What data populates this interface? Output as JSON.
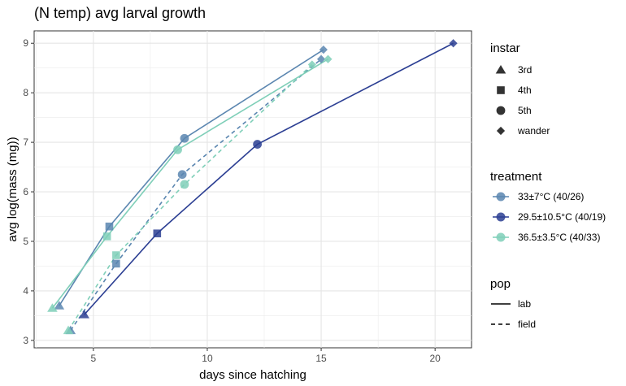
{
  "chart_data": {
    "type": "line",
    "title": "(N temp) avg larval growth",
    "xlabel": "days since hatching",
    "ylabel": "avg log(mass (mg))",
    "xlim": [
      2.4,
      21.6
    ],
    "ylim": [
      2.85,
      9.25
    ],
    "x_ticks": [
      5,
      10,
      15,
      20
    ],
    "y_ticks": [
      3,
      4,
      5,
      6,
      7,
      8,
      9
    ],
    "grid": true,
    "legend_placement": "right",
    "instars": [
      "3rd",
      "4th",
      "5th",
      "wander"
    ],
    "series": [
      {
        "treatment": "33±7°C (40/26)",
        "pop": "lab",
        "color": "#5b86b0",
        "points": [
          {
            "x": 3.5,
            "y": 3.7,
            "instar": "3rd"
          },
          {
            "x": 5.7,
            "y": 5.3,
            "instar": "4th"
          },
          {
            "x": 9.0,
            "y": 7.08,
            "instar": "5th"
          },
          {
            "x": 15.1,
            "y": 8.87,
            "instar": "wander"
          }
        ]
      },
      {
        "treatment": "33±7°C (40/26)",
        "pop": "field",
        "color": "#5b86b0",
        "points": [
          {
            "x": 4.0,
            "y": 3.2,
            "instar": "3rd"
          },
          {
            "x": 6.0,
            "y": 4.55,
            "instar": "4th"
          },
          {
            "x": 8.9,
            "y": 6.35,
            "instar": "5th"
          },
          {
            "x": 15.0,
            "y": 8.68,
            "instar": "wander"
          }
        ]
      },
      {
        "treatment": "29.5±10.5°C (40/19)",
        "pop": "lab",
        "color": "#2c3f93",
        "points": [
          {
            "x": 4.6,
            "y": 3.52,
            "instar": "3rd"
          },
          {
            "x": 7.8,
            "y": 5.16,
            "instar": "4th"
          },
          {
            "x": 12.2,
            "y": 6.96,
            "instar": "5th"
          },
          {
            "x": 20.8,
            "y": 9.0,
            "instar": "wander"
          }
        ]
      },
      {
        "treatment": "36.5±3.5°C (40/33)",
        "pop": "lab",
        "color": "#7fcfb8",
        "points": [
          {
            "x": 3.2,
            "y": 3.65,
            "instar": "3rd"
          },
          {
            "x": 5.6,
            "y": 5.1,
            "instar": "4th"
          },
          {
            "x": 8.7,
            "y": 6.85,
            "instar": "5th"
          },
          {
            "x": 15.3,
            "y": 8.68,
            "instar": "wander"
          }
        ]
      },
      {
        "treatment": "36.5±3.5°C (40/33)",
        "pop": "field",
        "color": "#7fcfb8",
        "points": [
          {
            "x": 3.9,
            "y": 3.2,
            "instar": "3rd"
          },
          {
            "x": 6.0,
            "y": 4.72,
            "instar": "4th"
          },
          {
            "x": 9.0,
            "y": 6.15,
            "instar": "5th"
          },
          {
            "x": 14.6,
            "y": 8.57,
            "instar": "wander"
          }
        ]
      }
    ],
    "legend": {
      "instar_title": "instar",
      "instar_items": [
        "3rd",
        "4th",
        "5th",
        "wander"
      ],
      "treatment_title": "treatment",
      "treatment_items": [
        {
          "label": "33±7°C (40/26)",
          "color": "#5b86b0"
        },
        {
          "label": "29.5±10.5°C (40/19)",
          "color": "#2c3f93"
        },
        {
          "label": "36.5±3.5°C (40/33)",
          "color": "#7fcfb8"
        }
      ],
      "pop_title": "pop",
      "pop_items": [
        "lab",
        "field"
      ]
    }
  }
}
